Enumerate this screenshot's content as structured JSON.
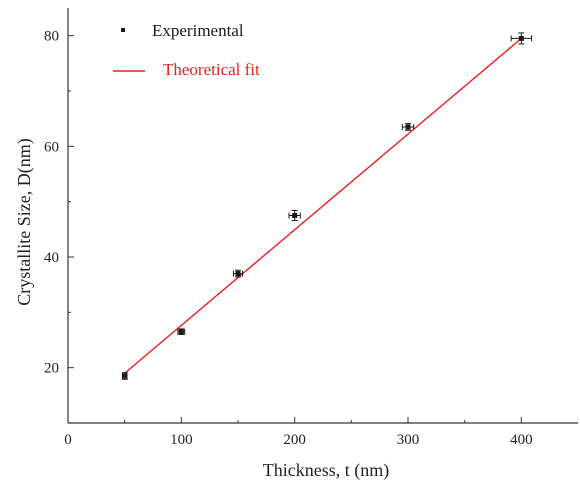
{
  "chart_data": {
    "type": "scatter",
    "title": "",
    "xlabel": "Thickness, t (nm)",
    "ylabel": "Crystallite Size, D(nm)",
    "xlim": [
      0,
      450
    ],
    "ylim": [
      10,
      85
    ],
    "x_ticks": [
      0,
      100,
      200,
      300,
      400
    ],
    "y_ticks": [
      20,
      40,
      60,
      80
    ],
    "grid": false,
    "legend_position": "top-left",
    "colors": {
      "experimental": "#1a1a1a",
      "fit": "#e8201c",
      "axis": "#333333"
    },
    "series": [
      {
        "name": "Experimental",
        "marker": "square",
        "x": [
          50,
          100,
          150,
          200,
          300,
          400
        ],
        "y": [
          18.5,
          26.5,
          37.0,
          47.5,
          63.5,
          79.5
        ],
        "x_err": [
          2,
          3,
          4,
          5,
          5,
          9
        ],
        "y_err": [
          0.6,
          0.5,
          0.6,
          0.9,
          0.6,
          1.0
        ]
      },
      {
        "name": "Theoretical fit",
        "style": "line",
        "x": [
          50,
          400
        ],
        "y": [
          19.0,
          79.5
        ]
      }
    ]
  }
}
